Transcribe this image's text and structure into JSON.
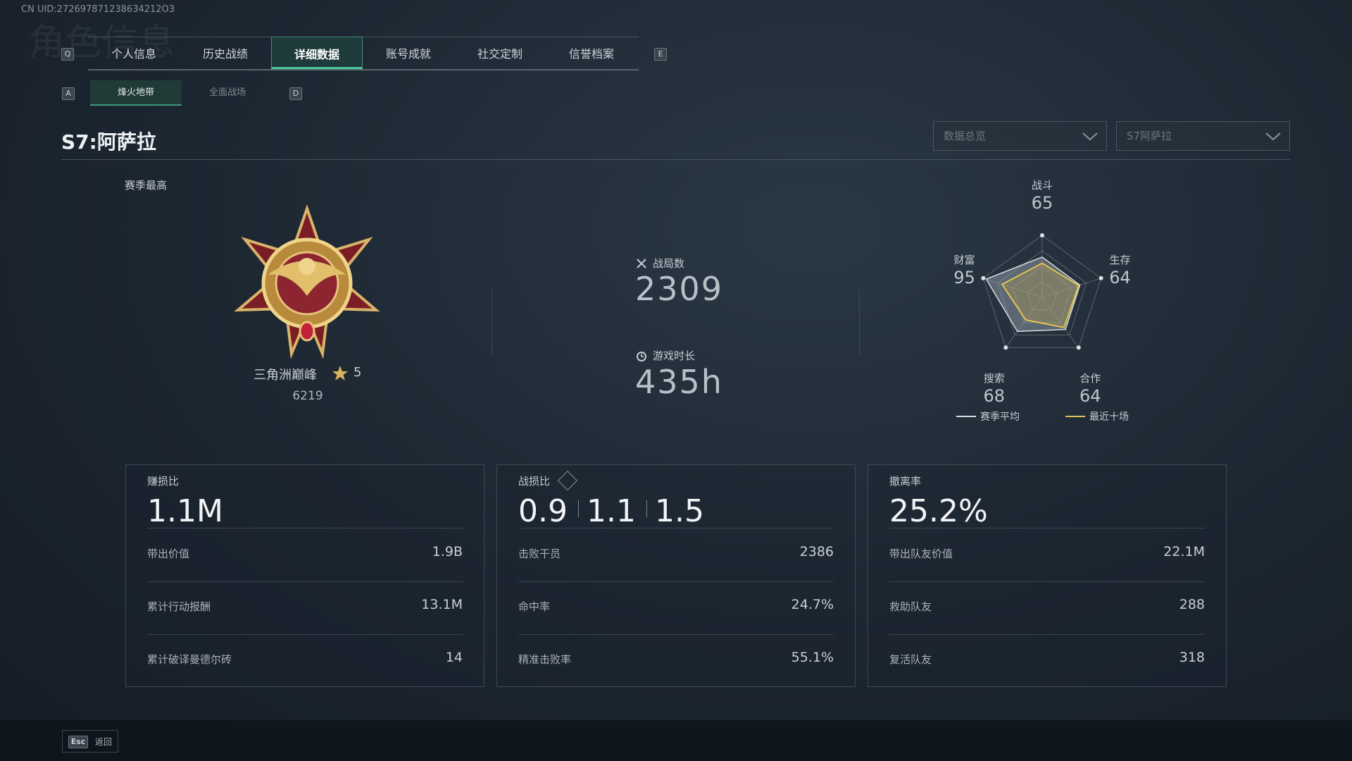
{
  "uid": "CN UID:272697871238634212O3",
  "watermark": "角色信息",
  "tabs": {
    "left_key": "Q",
    "items": [
      "个人信息",
      "历史战绩",
      "详细数据",
      "账号成就",
      "社交定制",
      "信誉档案"
    ],
    "right_key": "E",
    "active": 2
  },
  "subtabs": {
    "left_key": "A",
    "items": [
      "烽火地带",
      "全面战场"
    ],
    "right_key": "D",
    "active": 0
  },
  "season_title": "S7:阿萨拉",
  "dropdowns": [
    "数据总览",
    "S7阿萨拉"
  ],
  "season_best": {
    "label": "赛季最高",
    "rank": "三角洲巅峰",
    "stars": 5,
    "score": 6219
  },
  "matches": {
    "label": "战局数",
    "value": 2309
  },
  "playtime": {
    "label": "游戏时长",
    "value": "435h"
  },
  "radar": {
    "max": 100,
    "axes": [
      {
        "label": "战斗",
        "value": 65
      },
      {
        "label": "生存",
        "value": 64
      },
      {
        "label": "合作",
        "value": 64
      },
      {
        "label": "搜索",
        "value": 68
      },
      {
        "label": "财富",
        "value": 95
      }
    ],
    "recent_ten": [
      55,
      62,
      60,
      45,
      68
    ],
    "legend": [
      {
        "name": "赛季平均",
        "color": "#d8dde2"
      },
      {
        "name": "最近十场",
        "color": "#e2c255"
      }
    ]
  },
  "cards": [
    {
      "label": "赚损比",
      "values": [
        "1.1M"
      ],
      "rows": [
        [
          "带出价值",
          "1.9B"
        ],
        [
          "累计行动报酬",
          "13.1M"
        ],
        [
          "累计破译曼德尔砖",
          14
        ]
      ]
    },
    {
      "label": "战损比",
      "values": [
        0.9,
        1.1,
        1.5
      ],
      "rows": [
        [
          "击败干员",
          2386
        ],
        [
          "命中率",
          "24.7%"
        ],
        [
          "精准击败率",
          "55.1%"
        ]
      ]
    },
    {
      "label": "撤离率",
      "values": [
        "25.2%"
      ],
      "rows": [
        [
          "带出队友价值",
          "22.1M"
        ],
        [
          "救助队友",
          288
        ],
        [
          "复活队友",
          318
        ]
      ]
    }
  ],
  "footer": {
    "key": "Esc",
    "label": "返回"
  }
}
